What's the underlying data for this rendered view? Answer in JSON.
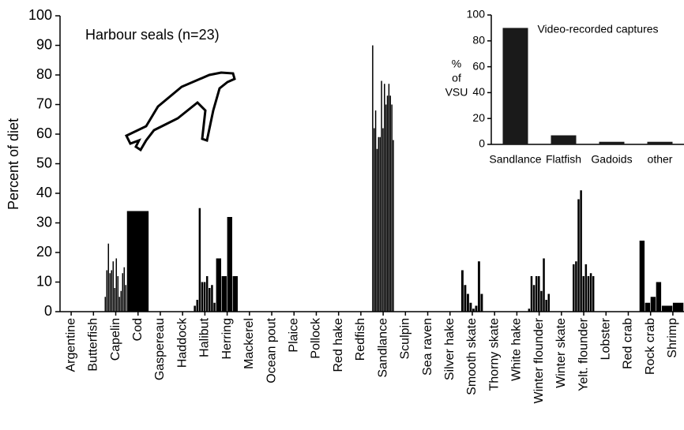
{
  "chart_data": [
    {
      "type": "bar",
      "ylabel": "Percent of diet",
      "annotation": "Harbour seals (n=23)",
      "categories": [
        "Argentine",
        "Butterfish",
        "Capelin",
        "Cod",
        "Gaspereau",
        "Haddock",
        "Halibut",
        "Herring",
        "Mackerel",
        "Ocean pout",
        "Plaice",
        "Pollock",
        "Red hake",
        "Redfish",
        "Sandlance",
        "Sculpin",
        "Sea raven",
        "Silver hake",
        "Smooth skate",
        "Thorny skate",
        "White hake",
        "Winter flounder",
        "Winter skate",
        "Yelt. flounder",
        "Lobster",
        "Red crab",
        "Rock crab",
        "Shrimp"
      ],
      "values": [
        [],
        [],
        [
          5,
          14,
          23,
          13,
          14,
          17,
          8,
          18,
          12,
          5,
          7,
          13,
          15,
          9
        ],
        [
          34
        ],
        [],
        [],
        [
          2,
          4,
          35,
          10,
          10,
          12,
          8,
          9,
          3
        ],
        [
          18,
          12,
          32,
          12
        ],
        [],
        [],
        [],
        [],
        [],
        [],
        [
          90,
          62,
          68,
          55,
          59,
          59,
          78,
          62,
          77,
          70,
          73,
          77,
          73,
          70,
          58
        ],
        [],
        [],
        [],
        [
          14,
          9,
          6,
          3,
          1,
          2,
          17,
          6
        ],
        [],
        [],
        [
          1,
          12,
          9,
          12,
          12,
          7,
          18,
          4,
          6
        ],
        [],
        [
          16,
          17,
          38,
          41,
          12,
          16,
          12,
          13,
          12
        ],
        [],
        [],
        [
          24,
          3,
          5,
          10
        ],
        [
          2,
          3
        ]
      ],
      "color": "#000000",
      "ylim": [
        0,
        100
      ],
      "yticks": [
        0,
        10,
        20,
        30,
        40,
        50,
        60,
        70,
        80,
        90,
        100
      ]
    },
    {
      "type": "bar",
      "title": "Video-recorded captures",
      "ylabel_lines": [
        "%",
        "of",
        "VSU"
      ],
      "categories": [
        "Sandlance",
        "Flatfish",
        "Gadoids",
        "other"
      ],
      "values": [
        90,
        7,
        2,
        2
      ],
      "color": "#1a1a1a",
      "ylim": [
        0,
        100
      ],
      "yticks": [
        0,
        20,
        40,
        60,
        80,
        100
      ]
    }
  ]
}
